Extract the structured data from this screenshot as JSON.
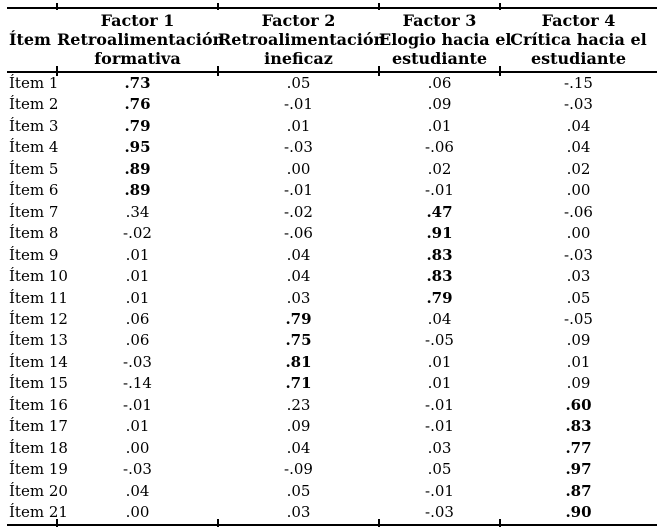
{
  "table": {
    "item_header": "Ítem",
    "factors": [
      {
        "title": "Factor 1",
        "sub1": "Retroalimentación",
        "sub2": "formativa"
      },
      {
        "title": "Factor 2",
        "sub1": "Retroalimentación",
        "sub2": "ineficaz"
      },
      {
        "title": "Factor 3",
        "sub1": "Elogio hacia el",
        "sub2": "estudiante"
      },
      {
        "title": "Factor 4",
        "sub1": "Crítica hacia el",
        "sub2": "estudiante"
      }
    ],
    "rows": [
      {
        "item": "Ítem 1",
        "values": [
          ".73",
          ".05",
          ".06",
          "-.15"
        ],
        "bold_index": 0
      },
      {
        "item": "Ítem 2",
        "values": [
          ".76",
          "-.01",
          ".09",
          "-.03"
        ],
        "bold_index": 0
      },
      {
        "item": "Ítem 3",
        "values": [
          ".79",
          ".01",
          ".01",
          ".04"
        ],
        "bold_index": 0
      },
      {
        "item": "Ítem 4",
        "values": [
          ".95",
          "-.03",
          "-.06",
          ".04"
        ],
        "bold_index": 0
      },
      {
        "item": "Ítem 5",
        "values": [
          ".89",
          ".00",
          ".02",
          ".02"
        ],
        "bold_index": 0
      },
      {
        "item": "Ítem 6",
        "values": [
          ".89",
          "-.01",
          "-.01",
          ".00"
        ],
        "bold_index": 0
      },
      {
        "item": "Ítem 7",
        "values": [
          ".34",
          "-.02",
          ".47",
          "-.06"
        ],
        "bold_index": 2
      },
      {
        "item": "Ítem 8",
        "values": [
          "-.02",
          "-.06",
          ".91",
          ".00"
        ],
        "bold_index": 2
      },
      {
        "item": "Ítem 9",
        "values": [
          ".01",
          ".04",
          ".83",
          "-.03"
        ],
        "bold_index": 2
      },
      {
        "item": "Ítem 10",
        "values": [
          ".01",
          ".04",
          ".83",
          ".03"
        ],
        "bold_index": 2
      },
      {
        "item": "Ítem 11",
        "values": [
          ".01",
          ".03",
          ".79",
          ".05"
        ],
        "bold_index": 2
      },
      {
        "item": "Ítem 12",
        "values": [
          ".06",
          ".79",
          ".04",
          "-.05"
        ],
        "bold_index": 1
      },
      {
        "item": "Ítem 13",
        "values": [
          ".06",
          ".75",
          "-.05",
          ".09"
        ],
        "bold_index": 1
      },
      {
        "item": "Ítem 14",
        "values": [
          "-.03",
          ".81",
          ".01",
          ".01"
        ],
        "bold_index": 1
      },
      {
        "item": "Ítem 15",
        "values": [
          "-.14",
          ".71",
          ".01",
          ".09"
        ],
        "bold_index": 1
      },
      {
        "item": "Ítem 16",
        "values": [
          "-.01",
          ".23",
          "-.01",
          ".60"
        ],
        "bold_index": 3
      },
      {
        "item": "Ítem 17",
        "values": [
          ".01",
          ".09",
          "-.01",
          ".83"
        ],
        "bold_index": 3
      },
      {
        "item": "Ítem 18",
        "values": [
          ".00",
          ".04",
          ".03",
          ".77"
        ],
        "bold_index": 3
      },
      {
        "item": "Ítem 19",
        "values": [
          "-.03",
          "-.09",
          ".05",
          ".97"
        ],
        "bold_index": 3
      },
      {
        "item": "Ítem 20",
        "values": [
          ".04",
          ".05",
          "-.01",
          ".87"
        ],
        "bold_index": 3
      },
      {
        "item": "Ítem 21",
        "values": [
          ".00",
          ".03",
          "-.03",
          ".90"
        ],
        "bold_index": 3
      }
    ]
  },
  "style": {
    "rule_color": "#000000",
    "text_color": "#000000",
    "background_color": "#ffffff"
  }
}
